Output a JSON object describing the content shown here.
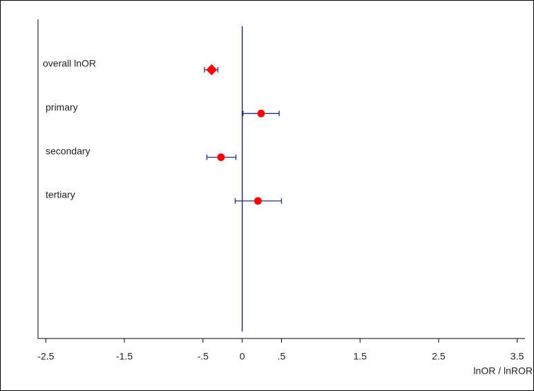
{
  "chart_data": {
    "type": "forest",
    "categories": [
      "overall lnOR",
      "primary",
      "secondary",
      "tertiary"
    ],
    "values": [
      -0.39,
      0.24,
      -0.27,
      0.2
    ],
    "lower": [
      -0.48,
      0.01,
      -0.45,
      -0.09
    ],
    "upper": [
      -0.31,
      0.47,
      -0.08,
      0.5
    ],
    "markers": [
      "diamond",
      "circle",
      "circle",
      "circle"
    ],
    "color": "#ff0000",
    "line_color": "#1f2f6f",
    "reference_line": 0,
    "xlabel": "lnOR / lnROR",
    "xlim": [
      -2.6,
      3.6
    ],
    "xticks": [
      -2.5,
      -1.5,
      {
        "value": -0.5,
        "label": "-.5"
      },
      0,
      {
        "value": 0.5,
        "label": ".5"
      },
      1.5,
      2.5,
      3.5
    ]
  }
}
